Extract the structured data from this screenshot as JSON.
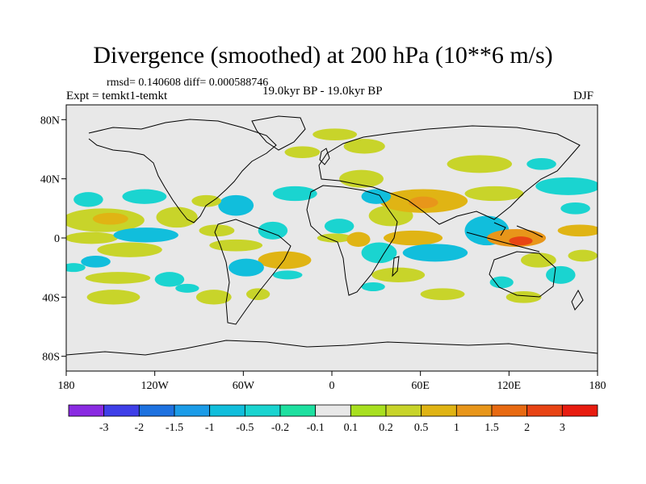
{
  "chart_data": {
    "type": "heatmap",
    "title": "Divergence (smoothed) at 200 hPa (10**6 m/s)",
    "stats": "rmsd= 0.140608 diff= 0.000588746",
    "left_label": "Expt = temkt1-temkt",
    "center_label": "19.0kyr BP - 19.0kyr BP",
    "right_label": "DJF",
    "x_axis": {
      "range": [
        -180,
        180
      ],
      "ticks": [
        -180,
        -120,
        -60,
        0,
        60,
        120,
        180
      ],
      "tick_labels": [
        "180",
        "120W",
        "60W",
        "0",
        "60E",
        "120E",
        "180"
      ]
    },
    "y_axis": {
      "range": [
        -90,
        90
      ],
      "ticks": [
        80,
        40,
        0,
        -40,
        -80
      ],
      "tick_labels": [
        "80N",
        "40N",
        "0",
        "40S",
        "80S"
      ]
    },
    "colorbar": {
      "labels": [
        "-3",
        "-2",
        "-1.5",
        "-1",
        "-0.5",
        "-0.2",
        "-0.1",
        "0.1",
        "0.2",
        "0.5",
        "1",
        "1.5",
        "2",
        "3"
      ],
      "colors": [
        "#8a2be2",
        "#3f3fe8",
        "#1e72e0",
        "#1b9ce8",
        "#11bedc",
        "#1ad4d0",
        "#1ee0a0",
        "#e8e8e8",
        "#a8e020",
        "#c8d42a",
        "#e0b414",
        "#e8961a",
        "#e86a12",
        "#e84414",
        "#e81c10"
      ]
    },
    "regions": [
      {
        "level": "0.2",
        "lon": -155,
        "lat": 12,
        "rlon": 28,
        "rlat": 8
      },
      {
        "level": "0.5",
        "lon": -150,
        "lat": 13,
        "rlon": 12,
        "rlat": 4
      },
      {
        "level": "0.2",
        "lon": -163,
        "lat": 0,
        "rlon": 18,
        "rlat": 4
      },
      {
        "level": "0.2",
        "lon": -105,
        "lat": 14,
        "rlon": 14,
        "rlat": 7
      },
      {
        "level": "0.2",
        "lon": -137,
        "lat": -8,
        "rlon": 22,
        "rlat": 5
      },
      {
        "level": "-0.2",
        "lon": -165,
        "lat": 26,
        "rlon": 10,
        "rlat": 5
      },
      {
        "level": "-0.2",
        "lon": -127,
        "lat": 28,
        "rlon": 15,
        "rlat": 5
      },
      {
        "level": "-0.5",
        "lon": -126,
        "lat": 2,
        "rlon": 22,
        "rlat": 5
      },
      {
        "level": "-0.5",
        "lon": -160,
        "lat": -16,
        "rlon": 10,
        "rlat": 4
      },
      {
        "level": "-0.2",
        "lon": -110,
        "lat": -28,
        "rlon": 10,
        "rlat": 5
      },
      {
        "level": "0.2",
        "lon": -145,
        "lat": -27,
        "rlon": 22,
        "rlat": 4
      },
      {
        "level": "-0.2",
        "lon": -175,
        "lat": -20,
        "rlon": 8,
        "rlat": 3
      },
      {
        "level": "0.2",
        "lon": -148,
        "lat": -40,
        "rlon": 18,
        "rlat": 5
      },
      {
        "level": "-0.2",
        "lon": -98,
        "lat": -34,
        "rlon": 8,
        "rlat": 3
      },
      {
        "level": "0.2",
        "lon": -80,
        "lat": -40,
        "rlon": 12,
        "rlat": 5
      },
      {
        "level": "-0.5",
        "lon": -65,
        "lat": 22,
        "rlon": 12,
        "rlat": 7
      },
      {
        "level": "0.2",
        "lon": -85,
        "lat": 25,
        "rlon": 10,
        "rlat": 4
      },
      {
        "level": "0.2",
        "lon": -78,
        "lat": 5,
        "rlon": 12,
        "rlat": 4
      },
      {
        "level": "-0.2",
        "lon": -40,
        "lat": 5,
        "rlon": 10,
        "rlat": 6
      },
      {
        "level": "0.2",
        "lon": -65,
        "lat": -5,
        "rlon": 18,
        "rlat": 4
      },
      {
        "level": "0.5",
        "lon": -32,
        "lat": -15,
        "rlon": 18,
        "rlat": 6
      },
      {
        "level": "-0.5",
        "lon": -58,
        "lat": -20,
        "rlon": 12,
        "rlat": 6
      },
      {
        "level": "0.2",
        "lon": -50,
        "lat": -38,
        "rlon": 8,
        "rlat": 4
      },
      {
        "level": "-0.2",
        "lon": -30,
        "lat": -25,
        "rlon": 10,
        "rlat": 3
      },
      {
        "level": "-0.2",
        "lon": -25,
        "lat": 30,
        "rlon": 15,
        "rlat": 5
      },
      {
        "level": "0.2",
        "lon": -20,
        "lat": 58,
        "rlon": 12,
        "rlat": 4
      },
      {
        "level": "0.2",
        "lon": 2,
        "lat": 70,
        "rlon": 15,
        "rlat": 4
      },
      {
        "level": "0.2",
        "lon": 22,
        "lat": 62,
        "rlon": 14,
        "rlat": 5
      },
      {
        "level": "0.2",
        "lon": 20,
        "lat": 40,
        "rlon": 15,
        "rlat": 6
      },
      {
        "level": "-0.2",
        "lon": 5,
        "lat": 8,
        "rlon": 10,
        "rlat": 5
      },
      {
        "level": "0.2",
        "lon": 2,
        "lat": 0,
        "rlon": 12,
        "rlat": 3
      },
      {
        "level": "0.2",
        "lon": 40,
        "lat": 15,
        "rlon": 15,
        "rlat": 7
      },
      {
        "level": "0.5",
        "lon": 62,
        "lat": 25,
        "rlon": 30,
        "rlat": 8
      },
      {
        "level": "1",
        "lon": 62,
        "lat": 24,
        "rlon": 10,
        "rlat": 4
      },
      {
        "level": "-0.5",
        "lon": 30,
        "lat": 28,
        "rlon": 10,
        "rlat": 5
      },
      {
        "level": "0.5",
        "lon": 18,
        "lat": -1,
        "rlon": 8,
        "rlat": 5
      },
      {
        "level": "0.5",
        "lon": 55,
        "lat": 0,
        "rlon": 20,
        "rlat": 5
      },
      {
        "level": "-0.5",
        "lon": 70,
        "lat": -10,
        "rlon": 22,
        "rlat": 6
      },
      {
        "level": "-0.2",
        "lon": 32,
        "lat": -10,
        "rlon": 12,
        "rlat": 7
      },
      {
        "level": "0.2",
        "lon": 45,
        "lat": -25,
        "rlon": 18,
        "rlat": 5
      },
      {
        "level": "0.2",
        "lon": 75,
        "lat": -38,
        "rlon": 15,
        "rlat": 4
      },
      {
        "level": "-0.2",
        "lon": 28,
        "lat": -33,
        "rlon": 8,
        "rlat": 3
      },
      {
        "level": "0.2",
        "lon": 100,
        "lat": 50,
        "rlon": 22,
        "rlat": 6
      },
      {
        "level": "-0.2",
        "lon": 142,
        "lat": 50,
        "rlon": 10,
        "rlat": 4
      },
      {
        "level": "0.2",
        "lon": 110,
        "lat": 30,
        "rlon": 20,
        "rlat": 5
      },
      {
        "level": "-0.5",
        "lon": 105,
        "lat": 5,
        "rlon": 15,
        "rlat": 10
      },
      {
        "level": "1",
        "lon": 125,
        "lat": 0,
        "rlon": 20,
        "rlat": 6
      },
      {
        "level": "2",
        "lon": 128,
        "lat": -2,
        "rlon": 8,
        "rlat": 3
      },
      {
        "level": "-0.2",
        "lon": 160,
        "lat": 35,
        "rlon": 22,
        "rlat": 6
      },
      {
        "level": "0.5",
        "lon": 168,
        "lat": 5,
        "rlon": 15,
        "rlat": 4
      },
      {
        "level": "-0.2",
        "lon": 165,
        "lat": 20,
        "rlon": 10,
        "rlat": 4
      },
      {
        "level": "0.2",
        "lon": 140,
        "lat": -15,
        "rlon": 12,
        "rlat": 5
      },
      {
        "level": "-0.2",
        "lon": 155,
        "lat": -25,
        "rlon": 10,
        "rlat": 6
      },
      {
        "level": "0.2",
        "lon": 170,
        "lat": -12,
        "rlon": 10,
        "rlat": 4
      },
      {
        "level": "0.2",
        "lon": 130,
        "lat": -40,
        "rlon": 12,
        "rlat": 4
      },
      {
        "level": "-0.2",
        "lon": 115,
        "lat": -30,
        "rlon": 8,
        "rlat": 4
      }
    ]
  }
}
